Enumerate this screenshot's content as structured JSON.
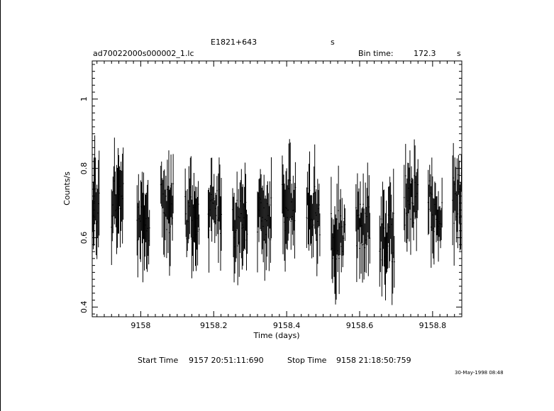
{
  "header": {
    "source": "E1821+643",
    "source_unit": "s",
    "filename": "ad70022000s000002_1.lc",
    "bin_label": "Bin time:",
    "bin_value": "172.3",
    "bin_unit": "s"
  },
  "footer": {
    "start_label": "Start Time",
    "start_value": "9157 20:51:11:690",
    "stop_label": "Stop Time",
    "stop_value": "9158 21:18:50:759",
    "date_stamp": "30-May-1998 08:48"
  },
  "chart_data": {
    "type": "scatter",
    "xlabel": "Time (days)",
    "ylabel": "Counts/s",
    "xlim": [
      9157.867,
      9158.88
    ],
    "ylim": [
      0.372,
      1.11
    ],
    "x_ticks": [
      9158,
      9158.2,
      9158.4,
      9158.6,
      9158.8
    ],
    "x_tick_labels": [
      "9158",
      "9158.2",
      "9158.4",
      "9158.6",
      "9158.8"
    ],
    "y_ticks": [
      0.4,
      0.6,
      0.8,
      1.0
    ],
    "y_tick_labels": [
      "0.4",
      "0.6",
      "0.8",
      "1"
    ],
    "grid": false,
    "series": [
      {
        "error_bars": true,
        "segments": [
          {
            "x_start": 9157.868,
            "x_end": 9157.887,
            "mean": 0.7
          },
          {
            "x_start": 9157.92,
            "x_end": 9157.952,
            "mean": 0.69
          },
          {
            "x_start": 9157.99,
            "x_end": 9158.025,
            "mean": 0.66
          },
          {
            "x_start": 9158.055,
            "x_end": 9158.09,
            "mean": 0.68
          },
          {
            "x_start": 9158.122,
            "x_end": 9158.16,
            "mean": 0.67
          },
          {
            "x_start": 9158.185,
            "x_end": 9158.222,
            "mean": 0.69
          },
          {
            "x_start": 9158.252,
            "x_end": 9158.292,
            "mean": 0.65
          },
          {
            "x_start": 9158.32,
            "x_end": 9158.358,
            "mean": 0.67
          },
          {
            "x_start": 9158.388,
            "x_end": 9158.425,
            "mean": 0.7
          },
          {
            "x_start": 9158.455,
            "x_end": 9158.492,
            "mean": 0.67
          },
          {
            "x_start": 9158.522,
            "x_end": 9158.56,
            "mean": 0.6
          },
          {
            "x_start": 9158.59,
            "x_end": 9158.628,
            "mean": 0.64
          },
          {
            "x_start": 9158.655,
            "x_end": 9158.695,
            "mean": 0.6
          },
          {
            "x_start": 9158.722,
            "x_end": 9158.76,
            "mean": 0.71
          },
          {
            "x_start": 9158.788,
            "x_end": 9158.826,
            "mean": 0.69
          },
          {
            "x_start": 9158.855,
            "x_end": 9158.88,
            "mean": 0.71
          }
        ]
      }
    ]
  }
}
